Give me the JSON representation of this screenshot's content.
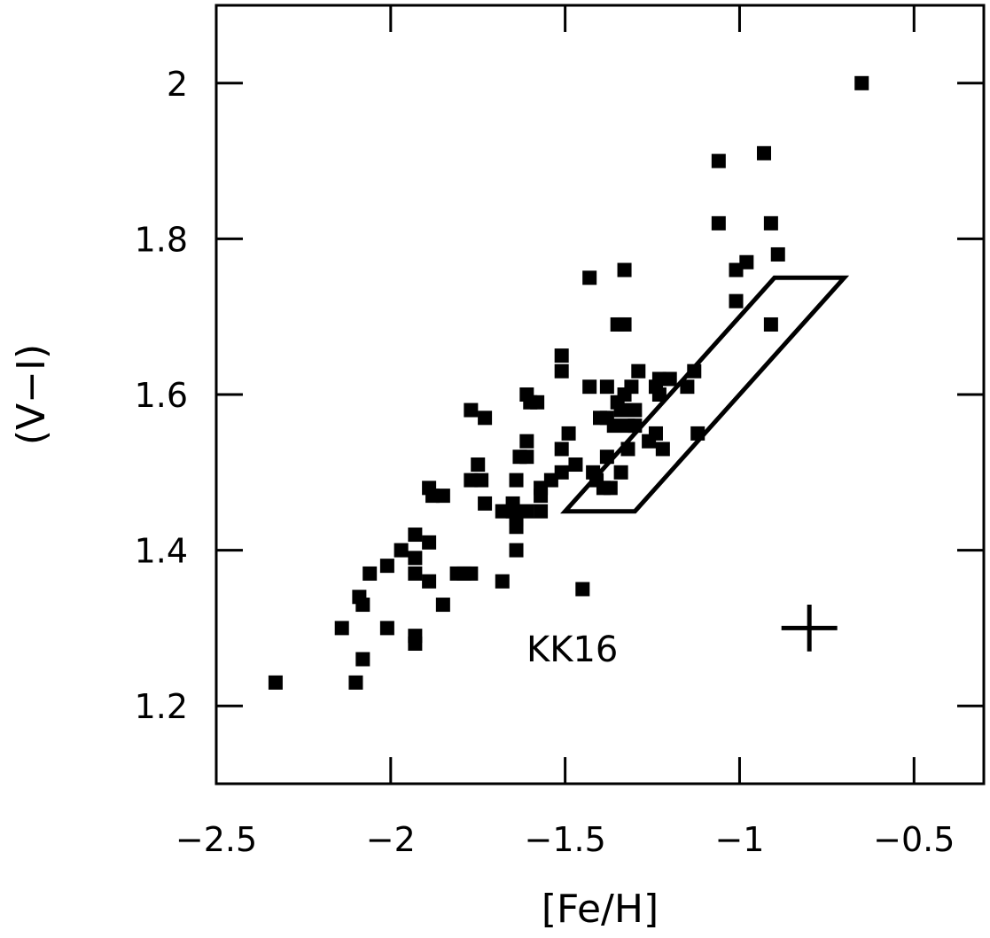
{
  "chart_data": {
    "type": "scatter",
    "xlabel": "[Fe/H]",
    "ylabel": "(V−I)",
    "xlim": [
      -2.5,
      -0.3
    ],
    "ylim": [
      1.1,
      2.1
    ],
    "x_ticks": [
      -2.5,
      -2,
      -1.5,
      -1,
      -0.5
    ],
    "x_tick_labels": [
      "−2.5",
      "−2",
      "−1.5",
      "−1",
      "−0.5"
    ],
    "y_ticks": [
      1.2,
      1.4,
      1.6,
      1.8,
      2
    ],
    "y_tick_labels": [
      "1.2",
      "1.4",
      "1.6",
      "1.8",
      "2"
    ],
    "annotation": "KK16",
    "series": [
      {
        "points": [
          [
            -2.33,
            1.23
          ],
          [
            -2.14,
            1.3
          ],
          [
            -2.1,
            1.23
          ],
          [
            -2.09,
            1.34
          ],
          [
            -2.08,
            1.33
          ],
          [
            -2.08,
            1.26
          ],
          [
            -2.06,
            1.37
          ],
          [
            -2.01,
            1.38
          ],
          [
            -2.01,
            1.3
          ],
          [
            -1.97,
            1.4
          ],
          [
            -1.93,
            1.42
          ],
          [
            -1.93,
            1.39
          ],
          [
            -1.93,
            1.37
          ],
          [
            -1.93,
            1.29
          ],
          [
            -1.93,
            1.28
          ],
          [
            -1.89,
            1.41
          ],
          [
            -1.89,
            1.36
          ],
          [
            -1.89,
            1.48
          ],
          [
            -1.88,
            1.47
          ],
          [
            -1.85,
            1.47
          ],
          [
            -1.85,
            1.33
          ],
          [
            -1.81,
            1.37
          ],
          [
            -1.79,
            1.37
          ],
          [
            -1.77,
            1.58
          ],
          [
            -1.77,
            1.37
          ],
          [
            -1.77,
            1.49
          ],
          [
            -1.75,
            1.51
          ],
          [
            -1.74,
            1.49
          ],
          [
            -1.73,
            1.57
          ],
          [
            -1.73,
            1.46
          ],
          [
            -1.68,
            1.36
          ],
          [
            -1.68,
            1.45
          ],
          [
            -1.65,
            1.46
          ],
          [
            -1.65,
            1.45
          ],
          [
            -1.64,
            1.49
          ],
          [
            -1.64,
            1.44
          ],
          [
            -1.64,
            1.43
          ],
          [
            -1.64,
            1.4
          ],
          [
            -1.63,
            1.52
          ],
          [
            -1.61,
            1.6
          ],
          [
            -1.61,
            1.54
          ],
          [
            -1.61,
            1.52
          ],
          [
            -1.61,
            1.45
          ],
          [
            -1.6,
            1.59
          ],
          [
            -1.58,
            1.59
          ],
          [
            -1.57,
            1.48
          ],
          [
            -1.57,
            1.47
          ],
          [
            -1.57,
            1.45
          ],
          [
            -1.54,
            1.49
          ],
          [
            -1.51,
            1.65
          ],
          [
            -1.51,
            1.63
          ],
          [
            -1.51,
            1.53
          ],
          [
            -1.51,
            1.5
          ],
          [
            -1.49,
            1.55
          ],
          [
            -1.47,
            1.51
          ],
          [
            -1.45,
            1.35
          ],
          [
            -1.43,
            1.75
          ],
          [
            -1.43,
            1.61
          ],
          [
            -1.42,
            1.5
          ],
          [
            -1.41,
            1.49
          ],
          [
            -1.4,
            1.57
          ],
          [
            -1.39,
            1.48
          ],
          [
            -1.38,
            1.61
          ],
          [
            -1.38,
            1.57
          ],
          [
            -1.38,
            1.52
          ],
          [
            -1.37,
            1.48
          ],
          [
            -1.36,
            1.56
          ],
          [
            -1.35,
            1.69
          ],
          [
            -1.35,
            1.59
          ],
          [
            -1.34,
            1.58
          ],
          [
            -1.34,
            1.5
          ],
          [
            -1.33,
            1.76
          ],
          [
            -1.33,
            1.69
          ],
          [
            -1.33,
            1.6
          ],
          [
            -1.32,
            1.56
          ],
          [
            -1.32,
            1.53
          ],
          [
            -1.31,
            1.61
          ],
          [
            -1.3,
            1.58
          ],
          [
            -1.3,
            1.56
          ],
          [
            -1.29,
            1.63
          ],
          [
            -1.26,
            1.54
          ],
          [
            -1.24,
            1.61
          ],
          [
            -1.24,
            1.55
          ],
          [
            -1.23,
            1.62
          ],
          [
            -1.23,
            1.6
          ],
          [
            -1.22,
            1.53
          ],
          [
            -1.2,
            1.62
          ],
          [
            -1.15,
            1.61
          ],
          [
            -1.13,
            1.63
          ],
          [
            -1.12,
            1.55
          ],
          [
            -1.06,
            1.9
          ],
          [
            -1.06,
            1.82
          ],
          [
            -1.01,
            1.76
          ],
          [
            -1.01,
            1.72
          ],
          [
            -0.98,
            1.77
          ],
          [
            -0.93,
            1.91
          ],
          [
            -0.91,
            1.82
          ],
          [
            -0.91,
            1.69
          ],
          [
            -0.89,
            1.78
          ],
          [
            -0.65,
            2.0
          ]
        ]
      }
    ],
    "selection_region": [
      [
        -1.5,
        1.45
      ],
      [
        -1.3,
        1.45
      ],
      [
        -0.7,
        1.75
      ],
      [
        -0.9,
        1.75
      ]
    ],
    "error_bar": {
      "x": -0.8,
      "y": 1.3,
      "xerr": 0.08,
      "yerr": 0.03
    },
    "grid": false,
    "legend": "none"
  }
}
